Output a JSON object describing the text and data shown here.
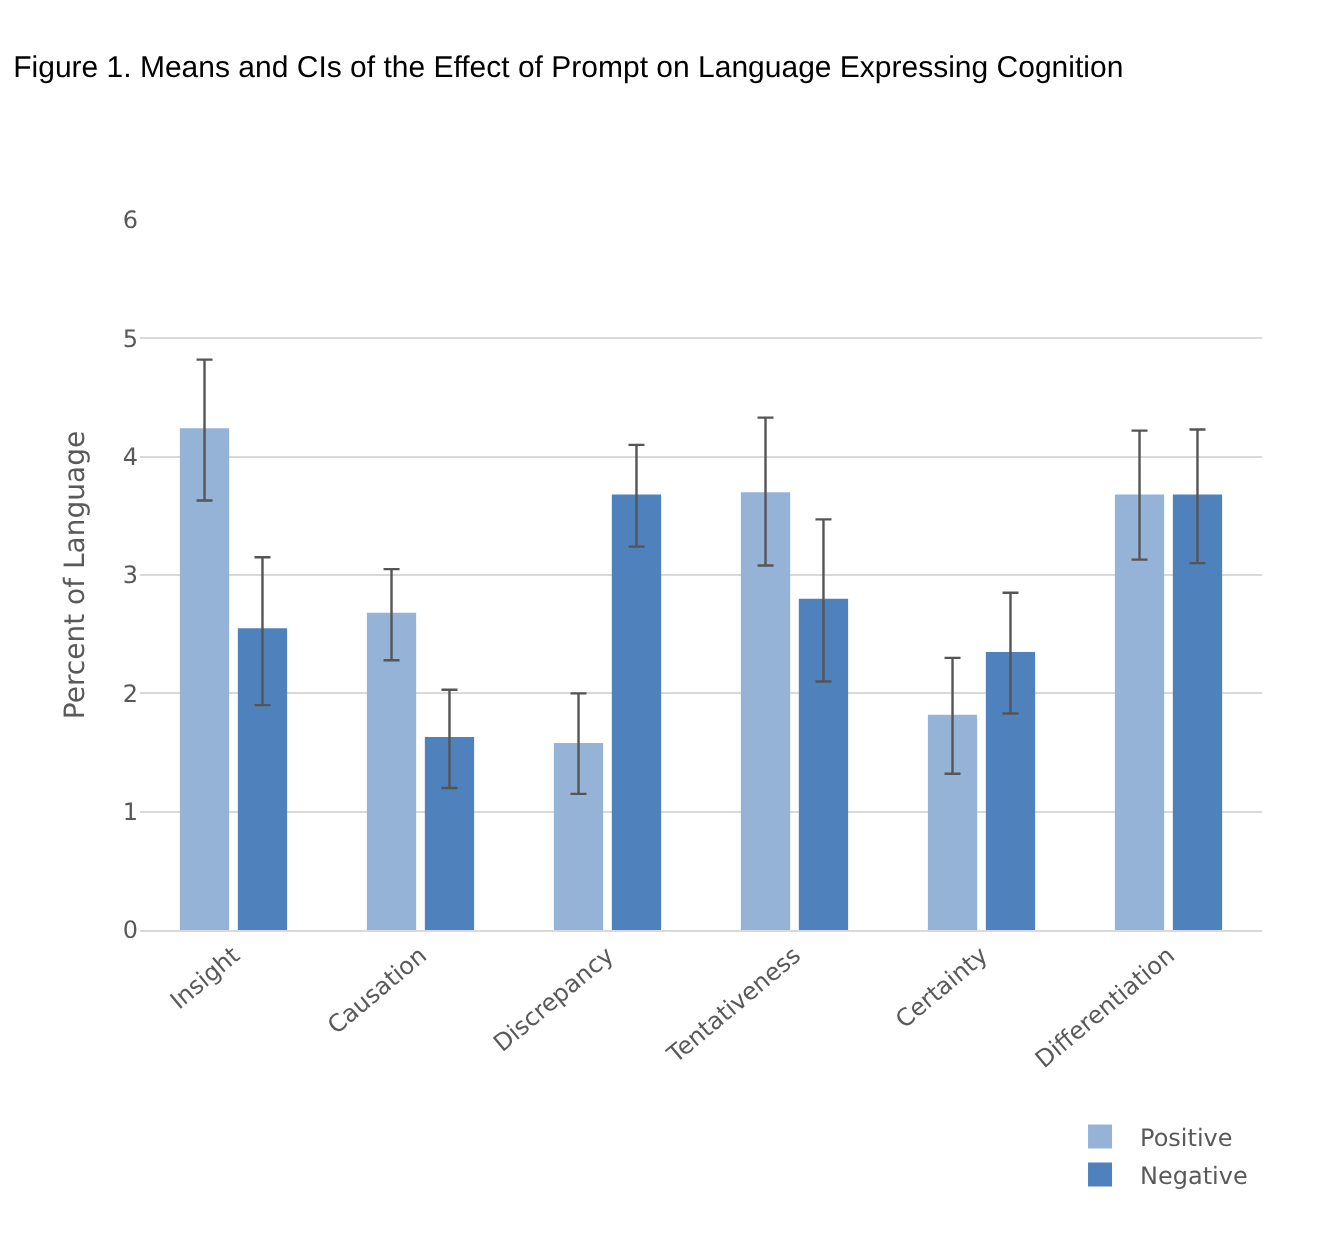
{
  "chart_data": {
    "type": "bar",
    "title": "Figure 1. Means and CIs of the Effect of Prompt on Language Expressing Cognition",
    "ylabel": "Percent of Language",
    "categories": [
      "Insight",
      "Causation",
      "Discrepancy",
      "Tentativeness",
      "Certainty",
      "Differentiation"
    ],
    "series": [
      {
        "name": "Positive",
        "color": "#95b3d7",
        "values": [
          4.24,
          2.68,
          1.58,
          3.7,
          1.82,
          3.68
        ],
        "errors": [
          [
            3.63,
            4.82
          ],
          [
            2.28,
            3.05
          ],
          [
            1.15,
            2.0
          ],
          [
            3.08,
            4.33
          ],
          [
            1.32,
            2.3
          ],
          [
            3.13,
            4.22
          ]
        ]
      },
      {
        "name": "Negative",
        "color": "#4f81bd",
        "values": [
          2.55,
          1.63,
          3.68,
          2.8,
          2.35,
          3.68
        ],
        "errors": [
          [
            1.9,
            3.15
          ],
          [
            1.2,
            2.03
          ],
          [
            3.24,
            4.1
          ],
          [
            2.1,
            3.47
          ],
          [
            1.83,
            2.85
          ],
          [
            3.1,
            4.23
          ]
        ]
      }
    ],
    "ylim": [
      0,
      6
    ],
    "yticks": [
      0,
      1,
      2,
      3,
      4,
      5,
      6
    ],
    "grid": "y",
    "legend": "bottom right"
  }
}
